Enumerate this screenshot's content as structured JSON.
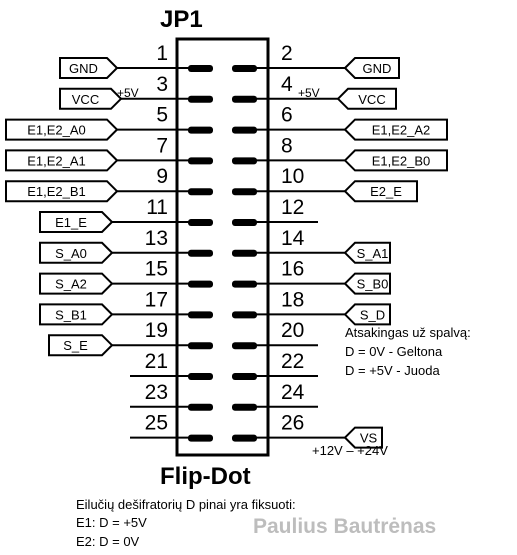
{
  "header": {
    "title": "JP1"
  },
  "footer": {
    "title": "Flip-Dot"
  },
  "pins_left": [
    {
      "num": "1",
      "label": "GND",
      "volt": ""
    },
    {
      "num": "3",
      "label": "VCC",
      "volt": "+5V"
    },
    {
      "num": "5",
      "label": "E1,E2_A0",
      "volt": ""
    },
    {
      "num": "7",
      "label": "E1,E2_A1",
      "volt": ""
    },
    {
      "num": "9",
      "label": "E1,E2_B1",
      "volt": ""
    },
    {
      "num": "11",
      "label": "E1_E",
      "volt": ""
    },
    {
      "num": "13",
      "label": "S_A0",
      "volt": ""
    },
    {
      "num": "15",
      "label": "S_A2",
      "volt": ""
    },
    {
      "num": "17",
      "label": "S_B1",
      "volt": ""
    },
    {
      "num": "19",
      "label": "S_E",
      "volt": ""
    },
    {
      "num": "21",
      "label": "",
      "volt": ""
    },
    {
      "num": "23",
      "label": "",
      "volt": ""
    },
    {
      "num": "25",
      "label": "",
      "volt": ""
    }
  ],
  "pins_right": [
    {
      "num": "2",
      "label": "GND",
      "volt": ""
    },
    {
      "num": "4",
      "label": "VCC",
      "volt": "+5V"
    },
    {
      "num": "6",
      "label": "E1,E2_A2",
      "volt": ""
    },
    {
      "num": "8",
      "label": "E1,E2_B0",
      "volt": ""
    },
    {
      "num": "10",
      "label": "E2_E",
      "volt": ""
    },
    {
      "num": "12",
      "label": "",
      "volt": ""
    },
    {
      "num": "14",
      "label": "S_A1",
      "volt": ""
    },
    {
      "num": "16",
      "label": "S_B0",
      "volt": ""
    },
    {
      "num": "18",
      "label": "S_D",
      "volt": ""
    },
    {
      "num": "20",
      "label": "",
      "volt": ""
    },
    {
      "num": "22",
      "label": "",
      "volt": ""
    },
    {
      "num": "24",
      "label": "",
      "volt": ""
    },
    {
      "num": "26",
      "label": "VS",
      "volt": ""
    }
  ],
  "vs_range": "+12V – +24V",
  "color_note": {
    "line1": "Atsakingas už spalvą:",
    "line2": "D = 0V - Geltona",
    "line3": "D = +5V - Juoda"
  },
  "bottom_note": {
    "line1": "Eilučių dešifratorių D pinai yra fiksuoti:",
    "line2": "E1: D = +5V",
    "line3": "E2: D = 0V"
  },
  "watermark": "Paulius Bautrėnas"
}
